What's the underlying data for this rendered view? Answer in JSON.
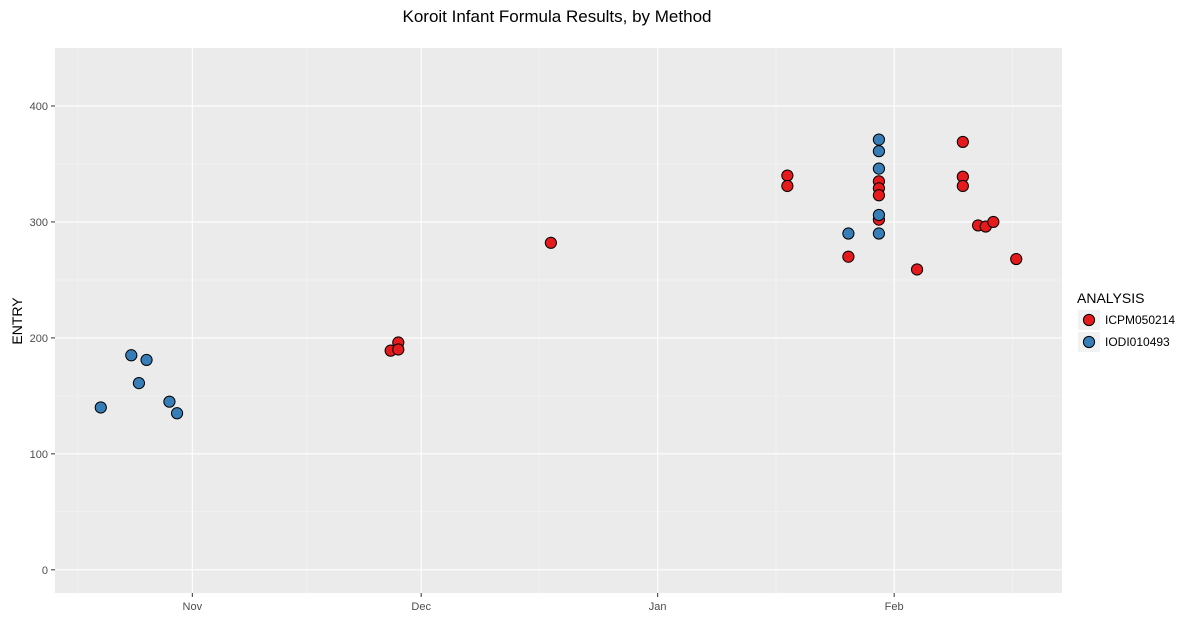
{
  "chart_data": {
    "type": "scatter",
    "title": "Koroit Infant Formula Results, by Method",
    "xlabel": "",
    "ylabel": "ENTRY",
    "x_axis_type": "date",
    "xlim": [
      "2017-10-14",
      "2018-02-23"
    ],
    "ylim": [
      -20,
      450
    ],
    "x_ticks": [
      {
        "date": "2017-11-01",
        "label": "Nov"
      },
      {
        "date": "2017-12-01",
        "label": "Dec"
      },
      {
        "date": "2018-01-01",
        "label": "Jan"
      },
      {
        "date": "2018-02-01",
        "label": "Feb"
      }
    ],
    "y_ticks": [
      0,
      100,
      200,
      300,
      400
    ],
    "grid": true,
    "background": "#ebebeb",
    "legend": {
      "title": "ANALYSIS",
      "position": "right"
    },
    "series": [
      {
        "name": "ICPM050214",
        "color": "#e41a1c",
        "points": [
          {
            "x": "2017-11-27",
            "y": 189
          },
          {
            "x": "2017-11-28",
            "y": 196
          },
          {
            "x": "2017-11-28",
            "y": 190
          },
          {
            "x": "2017-12-18",
            "y": 282
          },
          {
            "x": "2018-01-18",
            "y": 340
          },
          {
            "x": "2018-01-18",
            "y": 331
          },
          {
            "x": "2018-01-26",
            "y": 270
          },
          {
            "x": "2018-01-30",
            "y": 302
          },
          {
            "x": "2018-01-30",
            "y": 335
          },
          {
            "x": "2018-01-30",
            "y": 329
          },
          {
            "x": "2018-01-30",
            "y": 323
          },
          {
            "x": "2018-02-04",
            "y": 259
          },
          {
            "x": "2018-02-10",
            "y": 369
          },
          {
            "x": "2018-02-10",
            "y": 339
          },
          {
            "x": "2018-02-10",
            "y": 331
          },
          {
            "x": "2018-02-12",
            "y": 297
          },
          {
            "x": "2018-02-13",
            "y": 296
          },
          {
            "x": "2018-02-14",
            "y": 300
          },
          {
            "x": "2018-02-17",
            "y": 268
          }
        ]
      },
      {
        "name": "IODI010493",
        "color": "#377eb8",
        "points": [
          {
            "x": "2017-10-20",
            "y": 140
          },
          {
            "x": "2017-10-24",
            "y": 185
          },
          {
            "x": "2017-10-25",
            "y": 161
          },
          {
            "x": "2017-10-26",
            "y": 181
          },
          {
            "x": "2017-10-29",
            "y": 145
          },
          {
            "x": "2017-10-30",
            "y": 135
          },
          {
            "x": "2018-01-26",
            "y": 290
          },
          {
            "x": "2018-01-30",
            "y": 371
          },
          {
            "x": "2018-01-30",
            "y": 361
          },
          {
            "x": "2018-01-30",
            "y": 346
          },
          {
            "x": "2018-01-30",
            "y": 306
          },
          {
            "x": "2018-01-30",
            "y": 290
          }
        ]
      }
    ]
  }
}
